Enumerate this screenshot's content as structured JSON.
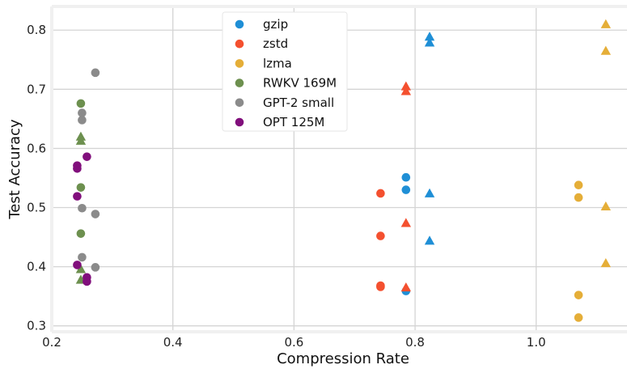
{
  "chart_data": {
    "type": "scatter",
    "xlabel": "Compression Rate",
    "ylabel": "Test Accuracy",
    "xlim": [
      0.2,
      1.15
    ],
    "ylim": [
      0.29,
      0.84
    ],
    "xticks": [
      0.2,
      0.4,
      0.6,
      0.8,
      1.0
    ],
    "xtick_labels": [
      "0.2",
      "0.4",
      "0.6",
      "0.8",
      "1.0"
    ],
    "yticks": [
      0.3,
      0.4,
      0.5,
      0.6,
      0.7,
      0.8
    ],
    "ytick_labels": [
      "0.3",
      "0.4",
      "0.5",
      "0.6",
      "0.7",
      "0.8"
    ],
    "grid": true,
    "legend_position": "top-center",
    "series": [
      {
        "name": "gzip",
        "color": "#1f8fd6",
        "points": [
          {
            "x": 0.785,
            "y": 0.551,
            "marker": "circle"
          },
          {
            "x": 0.785,
            "y": 0.53,
            "marker": "circle"
          },
          {
            "x": 0.785,
            "y": 0.359,
            "marker": "circle"
          },
          {
            "x": 0.824,
            "y": 0.789,
            "marker": "triangle"
          },
          {
            "x": 0.824,
            "y": 0.779,
            "marker": "triangle"
          },
          {
            "x": 0.824,
            "y": 0.524,
            "marker": "triangle"
          },
          {
            "x": 0.824,
            "y": 0.444,
            "marker": "triangle"
          }
        ]
      },
      {
        "name": "zstd",
        "color": "#f4502f",
        "points": [
          {
            "x": 0.743,
            "y": 0.524,
            "marker": "circle"
          },
          {
            "x": 0.743,
            "y": 0.452,
            "marker": "circle"
          },
          {
            "x": 0.743,
            "y": 0.368,
            "marker": "circle"
          },
          {
            "x": 0.743,
            "y": 0.366,
            "marker": "circle"
          },
          {
            "x": 0.785,
            "y": 0.705,
            "marker": "triangle"
          },
          {
            "x": 0.785,
            "y": 0.697,
            "marker": "triangle"
          },
          {
            "x": 0.785,
            "y": 0.474,
            "marker": "triangle"
          },
          {
            "x": 0.785,
            "y": 0.365,
            "marker": "triangle"
          }
        ]
      },
      {
        "name": "lzma",
        "color": "#e5ae38",
        "points": [
          {
            "x": 1.07,
            "y": 0.538,
            "marker": "circle"
          },
          {
            "x": 1.07,
            "y": 0.517,
            "marker": "circle"
          },
          {
            "x": 1.07,
            "y": 0.352,
            "marker": "circle"
          },
          {
            "x": 1.07,
            "y": 0.314,
            "marker": "circle"
          },
          {
            "x": 1.115,
            "y": 0.81,
            "marker": "triangle"
          },
          {
            "x": 1.115,
            "y": 0.765,
            "marker": "triangle"
          },
          {
            "x": 1.115,
            "y": 0.502,
            "marker": "triangle"
          },
          {
            "x": 1.115,
            "y": 0.406,
            "marker": "triangle"
          }
        ]
      },
      {
        "name": "RWKV 169M",
        "color": "#6d904f",
        "points": [
          {
            "x": 0.248,
            "y": 0.676,
            "marker": "circle"
          },
          {
            "x": 0.248,
            "y": 0.534,
            "marker": "circle"
          },
          {
            "x": 0.248,
            "y": 0.456,
            "marker": "circle"
          },
          {
            "x": 0.248,
            "y": 0.62,
            "marker": "triangle"
          },
          {
            "x": 0.248,
            "y": 0.613,
            "marker": "triangle"
          },
          {
            "x": 0.248,
            "y": 0.396,
            "marker": "triangle"
          },
          {
            "x": 0.248,
            "y": 0.378,
            "marker": "triangle"
          }
        ]
      },
      {
        "name": "GPT-2 small",
        "color": "#8b8b8b",
        "points": [
          {
            "x": 0.272,
            "y": 0.728,
            "marker": "circle"
          },
          {
            "x": 0.25,
            "y": 0.66,
            "marker": "circle"
          },
          {
            "x": 0.25,
            "y": 0.648,
            "marker": "circle"
          },
          {
            "x": 0.25,
            "y": 0.499,
            "marker": "circle"
          },
          {
            "x": 0.272,
            "y": 0.489,
            "marker": "circle"
          },
          {
            "x": 0.25,
            "y": 0.416,
            "marker": "circle"
          },
          {
            "x": 0.272,
            "y": 0.399,
            "marker": "circle"
          }
        ]
      },
      {
        "name": "OPT 125M",
        "color": "#810f7c",
        "points": [
          {
            "x": 0.258,
            "y": 0.586,
            "marker": "circle"
          },
          {
            "x": 0.242,
            "y": 0.571,
            "marker": "circle"
          },
          {
            "x": 0.242,
            "y": 0.566,
            "marker": "circle"
          },
          {
            "x": 0.242,
            "y": 0.519,
            "marker": "circle"
          },
          {
            "x": 0.242,
            "y": 0.403,
            "marker": "circle"
          },
          {
            "x": 0.258,
            "y": 0.382,
            "marker": "circle"
          },
          {
            "x": 0.258,
            "y": 0.375,
            "marker": "circle"
          }
        ]
      }
    ]
  }
}
